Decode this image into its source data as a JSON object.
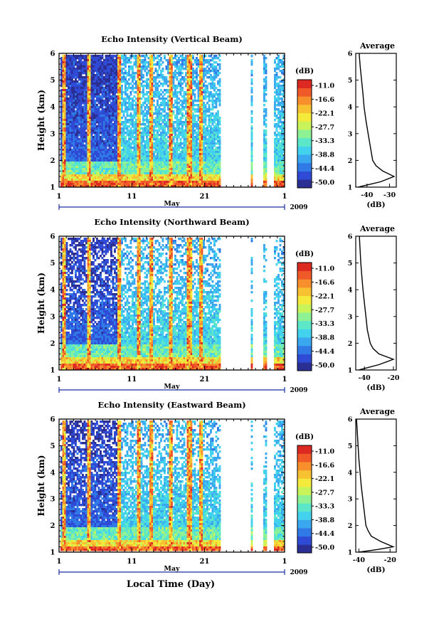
{
  "x_axis_title": "Local Time (Day)",
  "month_label": "May",
  "year_label": "2009",
  "colorbar_unit": "(dB)",
  "colorbar_ticks": [
    "-11.0",
    "-16.6",
    "-22.1",
    "-27.7",
    "-33.3",
    "-38.8",
    "-44.4",
    "-50.0"
  ],
  "colors": {
    "colormap": [
      "#2b2e93",
      "#2f4bd6",
      "#2f7ae6",
      "#3aa7ee",
      "#43d2ee",
      "#5ce8c8",
      "#8ef294",
      "#c8f45a",
      "#f3ea3c",
      "#f8c132",
      "#f7902c",
      "#f05a28",
      "#dc2a22"
    ],
    "axis_line": "#1a2ea0"
  },
  "panels": [
    {
      "title": "Echo Intensity (Vertical Beam)",
      "ylabel": "Height (km)",
      "xticks": [
        "1",
        "11",
        "21",
        "1"
      ],
      "yticks": [
        "1",
        "2",
        "3",
        "4",
        "5",
        "6"
      ],
      "avg_title": "Average",
      "avg_xticks": [
        "-40",
        "-30"
      ],
      "avg_xlabel": "(dB)",
      "avg_yticks": [
        "1",
        "2",
        "3",
        "4",
        "5",
        "6"
      ]
    },
    {
      "title": "Echo Intensity (Northward Beam)",
      "ylabel": "Height (km)",
      "xticks": [
        "1",
        "11",
        "21",
        "1"
      ],
      "yticks": [
        "1",
        "2",
        "3",
        "4",
        "5",
        "6"
      ],
      "avg_title": "Average",
      "avg_xticks": [
        "-40",
        "-20"
      ],
      "avg_xlabel": "(dB)",
      "avg_yticks": [
        "1",
        "2",
        "3",
        "4",
        "5",
        "6"
      ]
    },
    {
      "title": "Echo Intensity (Eastward Beam)",
      "ylabel": "Height (km)",
      "xticks": [
        "1",
        "11",
        "21",
        "1"
      ],
      "yticks": [
        "1",
        "2",
        "3",
        "4",
        "5",
        "6"
      ],
      "avg_title": "Average",
      "avg_xticks": [
        "-40",
        "-20"
      ],
      "avg_xlabel": "(dB)",
      "avg_yticks": [
        "1",
        "2",
        "3",
        "4",
        "5",
        "6"
      ]
    }
  ],
  "chart_data": [
    {
      "type": "heatmap",
      "title": "Echo Intensity (Vertical Beam)",
      "xlabel": "",
      "ylabel": "Height (km)",
      "xlim": [
        1,
        32
      ],
      "ylim": [
        1,
        6
      ],
      "color_range_db": [
        -50.0,
        -11.0
      ],
      "data_gaps_days": [
        [
          23.0,
          27.2
        ],
        [
          27.4,
          29.0
        ],
        [
          29.5,
          30.5
        ]
      ],
      "strong_echo_columns_days": [
        1.6,
        5.0,
        9.2,
        11.8,
        13.5,
        16.2,
        18.8,
        20.5
      ],
      "average_profile": {
        "title": "Average",
        "xlabel": "(dB)",
        "xlim": [
          -45,
          -27
        ],
        "height_km": [
          1.0,
          1.2,
          1.4,
          1.6,
          1.8,
          2.0,
          2.5,
          3.0,
          3.5,
          4.0,
          4.5,
          5.0,
          5.5,
          6.0
        ],
        "intensity_db": [
          -44,
          -34,
          -28,
          -33,
          -36,
          -37.5,
          -38.5,
          -39.5,
          -40.5,
          -41.3,
          -41.8,
          -42.4,
          -43,
          -43.5
        ]
      }
    },
    {
      "type": "heatmap",
      "title": "Echo Intensity (Northward Beam)",
      "xlabel": "",
      "ylabel": "Height (km)",
      "xlim": [
        1,
        32
      ],
      "ylim": [
        1,
        6
      ],
      "color_range_db": [
        -50.0,
        -11.0
      ],
      "data_gaps_days": [
        [
          23.0,
          27.2
        ],
        [
          27.4,
          29.0
        ],
        [
          29.5,
          30.5
        ]
      ],
      "strong_echo_columns_days": [
        1.6,
        5.0,
        9.2,
        11.8,
        13.5,
        16.2,
        18.8,
        20.5
      ],
      "average_profile": {
        "title": "Average",
        "xlabel": "(dB)",
        "xlim": [
          -46,
          -18
        ],
        "height_km": [
          1.0,
          1.2,
          1.4,
          1.6,
          1.8,
          2.0,
          2.5,
          3.0,
          3.5,
          4.0,
          4.5,
          5.0,
          5.5,
          6.0
        ],
        "intensity_db": [
          -44,
          -30,
          -20,
          -30,
          -34,
          -36,
          -38,
          -39,
          -40,
          -41,
          -41.8,
          -42.5,
          -43,
          -43.5
        ]
      }
    },
    {
      "type": "heatmap",
      "title": "Echo Intensity (Eastward Beam)",
      "xlabel": "Local Time (Day)",
      "ylabel": "Height (km)",
      "xlim": [
        1,
        32
      ],
      "ylim": [
        1,
        6
      ],
      "color_range_db": [
        -50.0,
        -11.0
      ],
      "data_gaps_days": [
        [
          23.0,
          27.2
        ],
        [
          27.4,
          29.0
        ],
        [
          29.5,
          30.5
        ]
      ],
      "strong_echo_columns_days": [
        1.6,
        5.0,
        9.2,
        11.8,
        13.5,
        16.2,
        18.8,
        20.5
      ],
      "average_profile": {
        "title": "Average",
        "xlabel": "(dB)",
        "xlim": [
          -42,
          -16
        ],
        "height_km": [
          1.0,
          1.1,
          1.2,
          1.4,
          1.6,
          1.8,
          2.0,
          2.5,
          3.0,
          3.5,
          4.0,
          4.5,
          5.0,
          5.5,
          6.0
        ],
        "intensity_db": [
          -40,
          -28,
          -18,
          -26,
          -32,
          -34,
          -35.5,
          -36.5,
          -37.5,
          -38.5,
          -39.2,
          -40,
          -40.5,
          -41,
          -41.5
        ]
      }
    }
  ]
}
